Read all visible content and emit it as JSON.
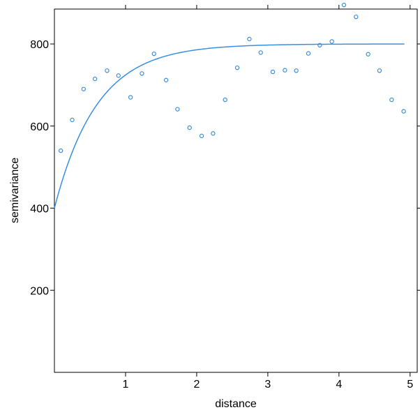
{
  "chart_data": {
    "type": "scatter",
    "xlabel": "distance",
    "ylabel": "semivariance",
    "xlim": [
      0,
      5.1
    ],
    "ylim": [
      0,
      885
    ],
    "x_ticks": [
      1,
      2,
      3,
      4,
      5
    ],
    "y_ticks": [
      200,
      400,
      600,
      800
    ],
    "x_tick_labels": [
      "1",
      "2",
      "3",
      "4",
      "5"
    ],
    "y_tick_labels": [
      "200",
      "400",
      "600",
      "800"
    ],
    "grid": false,
    "point_color": "#3a8fe0",
    "line_color": "#3a8fe0",
    "points": [
      {
        "x": 0.09,
        "y": 540
      },
      {
        "x": 0.25,
        "y": 615
      },
      {
        "x": 0.41,
        "y": 690
      },
      {
        "x": 0.57,
        "y": 715
      },
      {
        "x": 0.74,
        "y": 735
      },
      {
        "x": 0.9,
        "y": 723
      },
      {
        "x": 1.07,
        "y": 670
      },
      {
        "x": 1.23,
        "y": 728
      },
      {
        "x": 1.4,
        "y": 776
      },
      {
        "x": 1.57,
        "y": 712
      },
      {
        "x": 1.73,
        "y": 641
      },
      {
        "x": 1.9,
        "y": 596
      },
      {
        "x": 2.07,
        "y": 576
      },
      {
        "x": 2.23,
        "y": 582
      },
      {
        "x": 2.4,
        "y": 664
      },
      {
        "x": 2.57,
        "y": 742
      },
      {
        "x": 2.74,
        "y": 812
      },
      {
        "x": 2.9,
        "y": 779
      },
      {
        "x": 3.07,
        "y": 732
      },
      {
        "x": 3.24,
        "y": 736
      },
      {
        "x": 3.4,
        "y": 735
      },
      {
        "x": 3.57,
        "y": 777
      },
      {
        "x": 3.73,
        "y": 797
      },
      {
        "x": 3.9,
        "y": 806
      },
      {
        "x": 4.07,
        "y": 895
      },
      {
        "x": 4.24,
        "y": 866
      },
      {
        "x": 4.41,
        "y": 775
      },
      {
        "x": 4.57,
        "y": 735
      },
      {
        "x": 4.74,
        "y": 664
      },
      {
        "x": 4.91,
        "y": 636
      }
    ],
    "fit_model": {
      "nugget": 400,
      "psill": 400,
      "range": 0.6,
      "type": "exponential"
    }
  }
}
